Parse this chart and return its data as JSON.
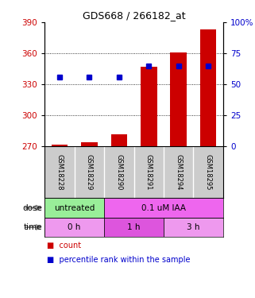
{
  "title": "GDS668 / 266182_at",
  "samples": [
    "GSM18228",
    "GSM18229",
    "GSM18290",
    "GSM18291",
    "GSM18294",
    "GSM18295"
  ],
  "bar_values": [
    271,
    274,
    281,
    347,
    361,
    383
  ],
  "bar_bottom": 270,
  "percentile_values": [
    56,
    56,
    56,
    65,
    65,
    65
  ],
  "ylim": [
    270,
    390
  ],
  "ylim_right": [
    0,
    100
  ],
  "yticks_left": [
    270,
    300,
    330,
    360,
    390
  ],
  "yticks_right": [
    0,
    25,
    50,
    75,
    100
  ],
  "bar_color": "#cc0000",
  "dot_color": "#0000cc",
  "grid_color": "#000000",
  "dose_labels": [
    {
      "text": "untreated",
      "start": 0,
      "end": 2,
      "color": "#99ee99"
    },
    {
      "text": "0.1 uM IAA",
      "start": 2,
      "end": 6,
      "color": "#ee66ee"
    }
  ],
  "time_labels": [
    {
      "text": "0 h",
      "start": 0,
      "end": 2,
      "color": "#ee99ee"
    },
    {
      "text": "1 h",
      "start": 2,
      "end": 4,
      "color": "#dd55dd"
    },
    {
      "text": "3 h",
      "start": 4,
      "end": 6,
      "color": "#ee99ee"
    }
  ],
  "sample_box_color": "#cccccc",
  "legend_count_color": "#cc0000",
  "legend_pct_color": "#0000cc",
  "background_color": "#ffffff",
  "plot_bg": "#ffffff",
  "tick_label_color_left": "#cc0000",
  "tick_label_color_right": "#0000cc"
}
